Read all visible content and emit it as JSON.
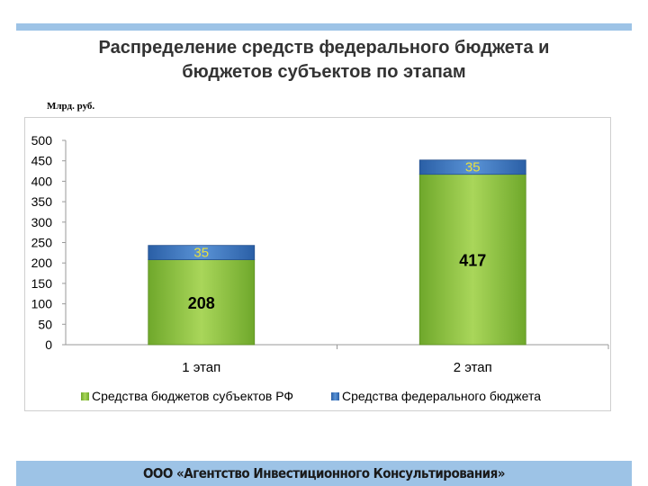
{
  "slide": {
    "title_line1": "Распределение средств федерального бюджета и",
    "title_line2": "бюджетов субъектов по этапам",
    "unit": "Млрд. руб.",
    "footer": "ООО «Агентство Инвестиционного Консультирования»"
  },
  "colors": {
    "bar_top": "#3a78c2",
    "bar_bottom": "#8cc63f",
    "value_label_small": "#e8e040",
    "accent_bar": "#9dc3e6"
  },
  "chart_data": {
    "type": "bar",
    "stacked": true,
    "categories": [
      "1 этап",
      "2 этап"
    ],
    "series": [
      {
        "name": "Средства бюджетов субъектов РФ",
        "values": [
          208,
          417
        ],
        "color": "#8cc63f"
      },
      {
        "name": "Средства федерального бюджета",
        "values": [
          35,
          35
        ],
        "color": "#3a78c2"
      }
    ],
    "ylim": [
      0,
      500
    ],
    "yticks": [
      0,
      50,
      100,
      150,
      200,
      250,
      300,
      350,
      400,
      450,
      500
    ],
    "grid": false,
    "legend": "bottom",
    "data_labels": true
  }
}
